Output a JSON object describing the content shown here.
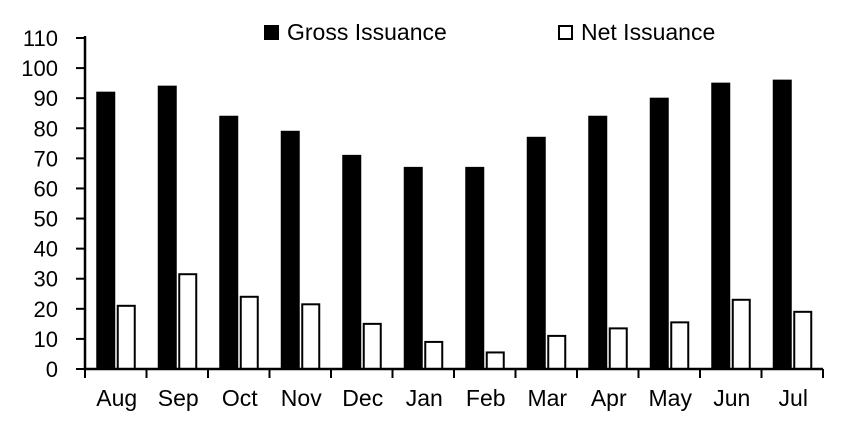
{
  "chart_data": {
    "type": "bar",
    "title": "",
    "xlabel": "",
    "ylabel": "",
    "categories": [
      "Aug",
      "Sep",
      "Oct",
      "Nov",
      "Dec",
      "Jan",
      "Feb",
      "Mar",
      "Apr",
      "May",
      "Jun",
      "Jul"
    ],
    "series": [
      {
        "name": "Gross Issuance",
        "fill": "#000000",
        "stroke": "#000000",
        "values": [
          92,
          94,
          84,
          79,
          71,
          67,
          67,
          77,
          84,
          90,
          95,
          96
        ]
      },
      {
        "name": "Net Issuance",
        "fill": "#ffffff",
        "stroke": "#000000",
        "values": [
          21,
          31.5,
          24,
          21.5,
          15,
          9,
          5.5,
          11,
          13.5,
          15.5,
          23,
          19
        ]
      }
    ],
    "ylim": [
      0,
      110
    ],
    "ytick_step": 10,
    "yticks": [
      0,
      10,
      20,
      30,
      40,
      50,
      60,
      70,
      80,
      90,
      100,
      110
    ],
    "legend_position": "top",
    "grid": false,
    "background_color": "#ffffff",
    "axis_color": "#000000"
  }
}
